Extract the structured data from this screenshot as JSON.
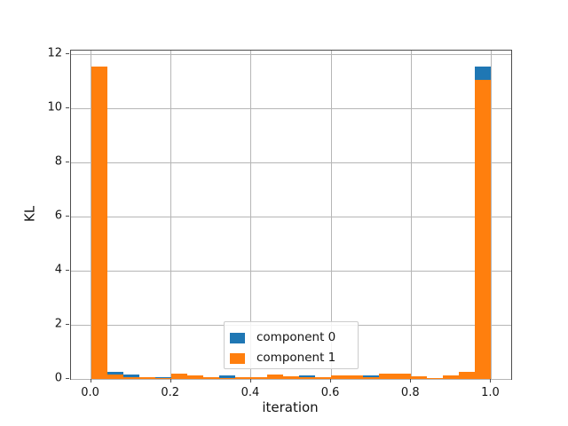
{
  "figure": {
    "background": "#ffffff",
    "grid_color": "#b6b6b6",
    "spine_color": "#4d4d4d",
    "text_color": "#141414"
  },
  "axes": {
    "xlabel": "iteration",
    "ylabel": "KL",
    "x_tick_labels": [
      "0.0",
      "0.2",
      "0.4",
      "0.6",
      "0.8",
      "1.0"
    ],
    "y_tick_labels": [
      "0",
      "2",
      "4",
      "6",
      "8",
      "10",
      "12"
    ]
  },
  "legend": {
    "entries": [
      {
        "label": "component 0",
        "color": "#1f77b4"
      },
      {
        "label": "component 1",
        "color": "#ff7f0e"
      }
    ]
  },
  "chart_data": {
    "type": "bar",
    "bar_mode": "overlay",
    "title": "",
    "xlabel": "iteration",
    "ylabel": "KL",
    "bin_width": 0.04,
    "categories": [
      0.02,
      0.06,
      0.1,
      0.14,
      0.18,
      0.22,
      0.26,
      0.3,
      0.34,
      0.38,
      0.42,
      0.46,
      0.5,
      0.54,
      0.58,
      0.62,
      0.66,
      0.7,
      0.74,
      0.78,
      0.82,
      0.86,
      0.9,
      0.94,
      0.98
    ],
    "series": [
      {
        "name": "component 0",
        "color": "#1f77b4",
        "values": [
          0,
          0.26,
          0.16,
          0,
          0.08,
          0,
          0,
          0,
          0.12,
          0,
          0,
          0,
          0,
          0.13,
          0,
          0,
          0,
          0.14,
          0,
          0,
          0,
          0,
          0,
          0,
          11.55
        ]
      },
      {
        "name": "component 1",
        "color": "#ff7f0e",
        "values": [
          11.55,
          0.15,
          0.08,
          0.06,
          0.03,
          0.19,
          0.13,
          0.08,
          0.04,
          0.06,
          0.08,
          0.15,
          0.1,
          0.05,
          0.06,
          0.12,
          0.14,
          0.05,
          0.19,
          0.21,
          0.1,
          0.03,
          0.13,
          0.25,
          11.05
        ]
      }
    ],
    "xlim": [
      -0.05,
      1.05
    ],
    "ylim": [
      0,
      12.14
    ],
    "x_tick_values": [
      0,
      0.2,
      0.4,
      0.6,
      0.8,
      1.0
    ],
    "y_tick_values": [
      0,
      2,
      4,
      6,
      8,
      10,
      12
    ],
    "grid": true,
    "legend_position": "lower center"
  }
}
